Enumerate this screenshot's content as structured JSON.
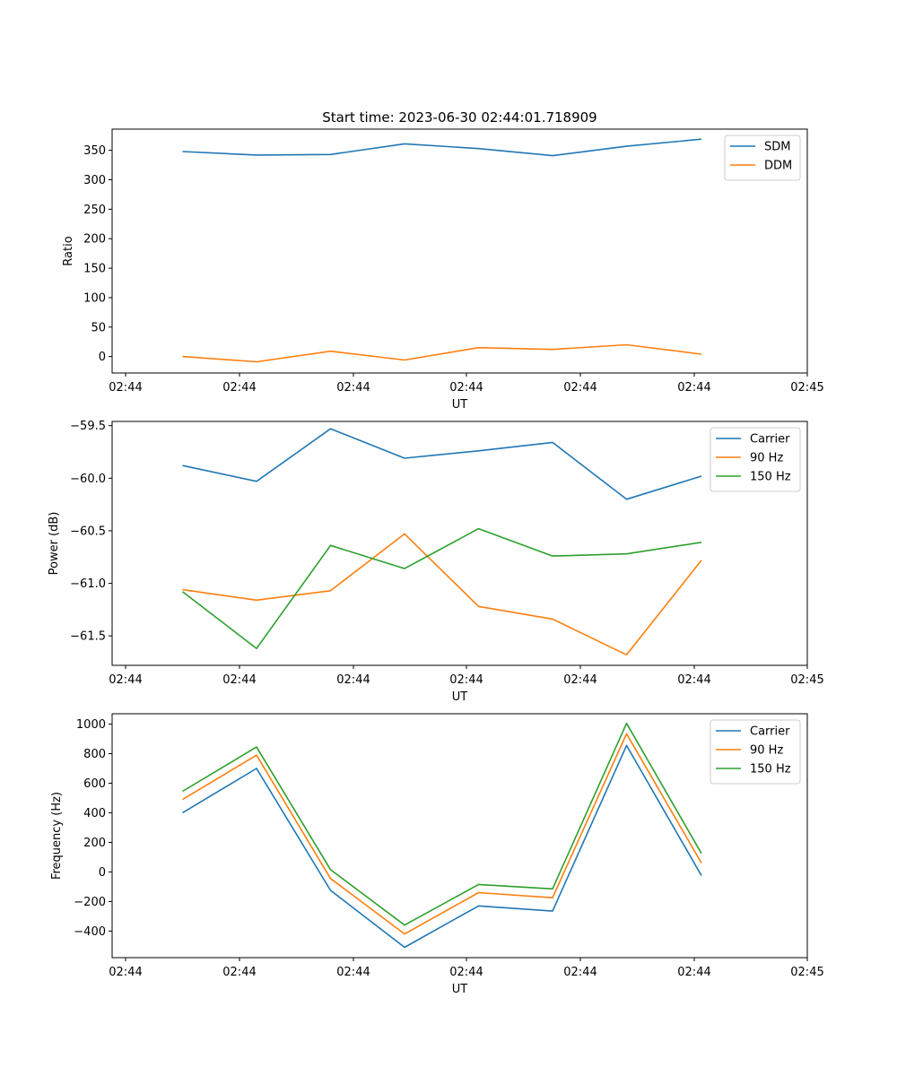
{
  "figure": {
    "title": "Start time: 2023-06-30 02:44:01.718909"
  },
  "chart_data": [
    {
      "type": "line",
      "title": "Start time: 2023-06-30 02:44:01.718909",
      "xlabel": "UT",
      "ylabel": "Ratio",
      "x_tick_labels": [
        "02:44",
        "02:44",
        "02:44",
        "02:44",
        "02:44",
        "02:44",
        "02:45"
      ],
      "y_ticks": [
        0,
        50,
        100,
        150,
        200,
        250,
        300,
        350
      ],
      "ylim": [
        -28,
        386
      ],
      "x": [
        1,
        2,
        3,
        4,
        5,
        6,
        7,
        8
      ],
      "series": [
        {
          "name": "SDM",
          "color": "#1f77b4",
          "values": [
            348,
            342,
            343,
            361,
            353,
            341,
            357,
            369
          ]
        },
        {
          "name": "DDM",
          "color": "#ff7f0e",
          "values": [
            0,
            -9,
            9,
            -6,
            15,
            12,
            20,
            4
          ]
        }
      ],
      "legend": "top-right",
      "grid": false
    },
    {
      "type": "line",
      "xlabel": "UT",
      "ylabel": "Power (dB)",
      "x_tick_labels": [
        "02:44",
        "02:44",
        "02:44",
        "02:44",
        "02:44",
        "02:44",
        "02:45"
      ],
      "y_ticks": [
        -59.5,
        -60.0,
        -60.5,
        -61.0,
        -61.5
      ],
      "y_tick_labels": [
        "−59.5",
        "−60.0",
        "−60.5",
        "−61.0",
        "−61.5"
      ],
      "ylim": [
        -61.78,
        -59.46
      ],
      "x": [
        1,
        2,
        3,
        4,
        5,
        6,
        7,
        8
      ],
      "series": [
        {
          "name": "Carrier",
          "color": "#1f77b4",
          "values": [
            -59.88,
            -60.03,
            -59.53,
            -59.81,
            -59.74,
            -59.66,
            -60.2,
            -59.98
          ]
        },
        {
          "name": "90 Hz",
          "color": "#ff7f0e",
          "values": [
            -61.06,
            -61.16,
            -61.07,
            -60.53,
            -61.22,
            -61.34,
            -61.68,
            -60.78
          ]
        },
        {
          "name": "150 Hz",
          "color": "#2ca02c",
          "values": [
            -61.08,
            -61.62,
            -60.64,
            -60.86,
            -60.48,
            -60.74,
            -60.72,
            -60.61
          ]
        }
      ],
      "legend": "top-right",
      "grid": false
    },
    {
      "type": "line",
      "xlabel": "UT",
      "ylabel": "Frequency (Hz)",
      "x_tick_labels": [
        "02:44",
        "02:44",
        "02:44",
        "02:44",
        "02:44",
        "02:44",
        "02:45"
      ],
      "y_ticks": [
        1000,
        800,
        600,
        400,
        200,
        0,
        -200,
        -400
      ],
      "y_tick_labels": [
        "1000",
        "800",
        "600",
        "400",
        "200",
        "0",
        "−200",
        "−400"
      ],
      "ylim": [
        -580,
        1070
      ],
      "x": [
        1,
        2,
        3,
        4,
        5,
        6,
        7,
        8
      ],
      "series": [
        {
          "name": "Carrier",
          "color": "#1f77b4",
          "values": [
            400,
            700,
            -125,
            -510,
            -230,
            -265,
            855,
            -25
          ]
        },
        {
          "name": "90 Hz",
          "color": "#ff7f0e",
          "values": [
            490,
            790,
            -45,
            -420,
            -140,
            -175,
            935,
            60
          ]
        },
        {
          "name": "150 Hz",
          "color": "#2ca02c",
          "values": [
            545,
            845,
            15,
            -360,
            -85,
            -115,
            1005,
            125
          ]
        }
      ],
      "legend": "top-right",
      "grid": false
    }
  ]
}
